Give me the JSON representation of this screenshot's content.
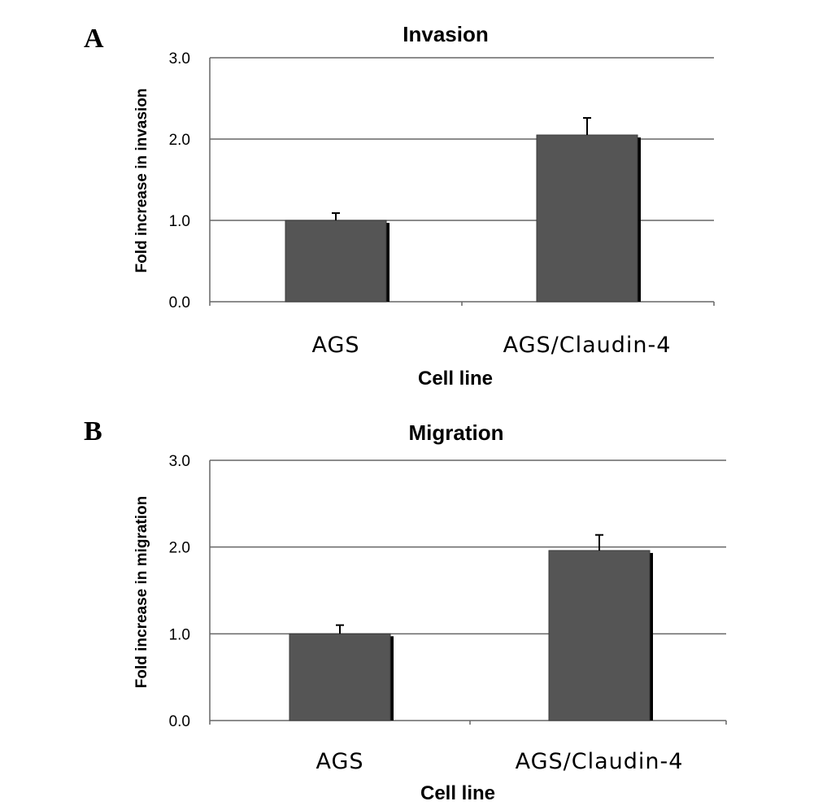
{
  "panels": [
    {
      "letter": "A"
    },
    {
      "letter": "B"
    }
  ],
  "colors": {
    "bar": "#555555",
    "bar_shadow": "#000000",
    "gridline": "#666666",
    "axis": "#666666"
  },
  "chart_data": [
    {
      "type": "bar",
      "title": "Invasion",
      "xlabel": "Cell line",
      "ylabel": "Fold increase in invasion",
      "categories": [
        "AGS",
        "AGS/Claudin-4"
      ],
      "values": [
        1.0,
        2.05
      ],
      "error_bars": [
        0.09,
        0.21
      ],
      "ylim": [
        0,
        3.0
      ],
      "yticks": [
        "0.0",
        "1.0",
        "2.0",
        "3.0"
      ],
      "grid": true,
      "legend": "none"
    },
    {
      "type": "bar",
      "title": "Migration",
      "xlabel": "Cell line",
      "ylabel": "Fold increase in migration",
      "categories": [
        "AGS",
        "AGS/Claudin-4"
      ],
      "values": [
        1.0,
        1.96
      ],
      "error_bars": [
        0.1,
        0.18
      ],
      "ylim": [
        0,
        3.0
      ],
      "yticks": [
        "0.0",
        "1.0",
        "2.0",
        "3.0"
      ],
      "grid": true,
      "legend": "none"
    }
  ]
}
